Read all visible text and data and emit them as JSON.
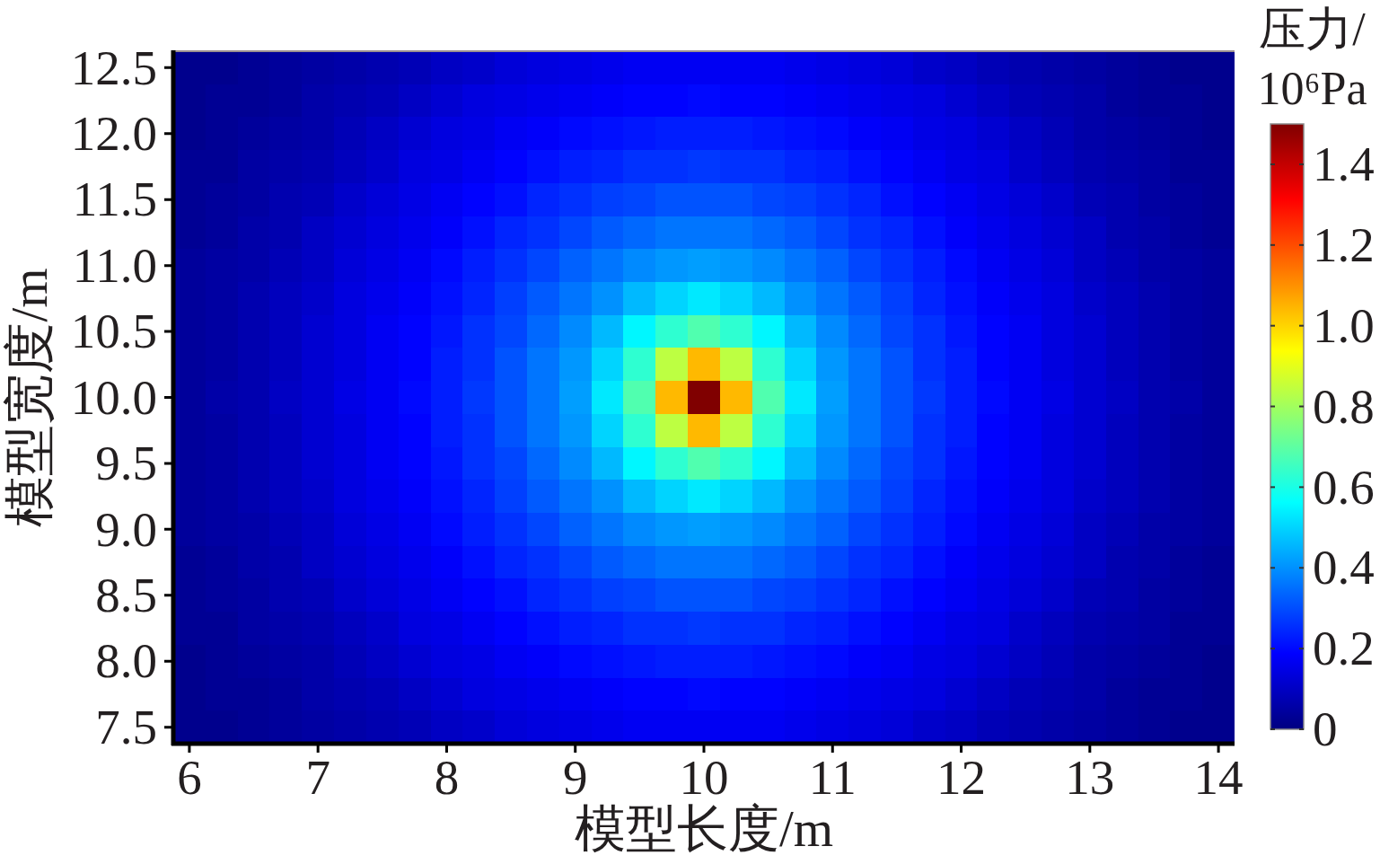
{
  "chart_data": {
    "type": "heatmap",
    "xlabel": "模型长度/m",
    "ylabel": "模型宽度/m",
    "clabel": "压力/10⁶Pa",
    "categories": [
      "6",
      null,
      null,
      null,
      "7",
      null,
      null,
      null,
      "8",
      null,
      null,
      null,
      "9",
      null,
      null,
      null,
      "10",
      null,
      null,
      null,
      "11",
      null,
      null,
      null,
      "12",
      null,
      null,
      null,
      "13",
      null,
      null,
      null,
      "14"
    ],
    "y_categories": [
      "12.5",
      null,
      "12.0",
      null,
      "11.5",
      null,
      "11.0",
      null,
      "10.5",
      null,
      "10.0",
      null,
      "9.5",
      null,
      "9.0",
      null,
      "8.5",
      null,
      "8.0",
      null,
      "7.5"
    ],
    "clim": [
      0,
      1.5
    ],
    "cticks": [
      0,
      0.2,
      0.4,
      0.6,
      0.8,
      {
        "value": 1,
        "label": "1.0"
      },
      1.2,
      1.4
    ],
    "cells": [
      [
        0.02,
        0.02,
        0.03,
        0.04,
        0.05,
        0.06,
        0.07,
        0.08,
        0.1,
        0.11,
        0.13,
        0.14,
        0.15,
        0.16,
        0.17,
        0.17,
        0.17,
        0.17,
        0.17,
        0.16,
        0.15,
        0.14,
        0.13,
        0.11,
        0.1,
        0.08,
        0.07,
        0.06,
        0.05,
        0.04,
        0.03,
        0.02,
        0.02
      ],
      [
        0.02,
        0.03,
        0.03,
        0.04,
        0.06,
        0.07,
        0.08,
        0.1,
        0.12,
        0.14,
        0.15,
        0.16,
        0.17,
        0.18,
        0.19,
        0.19,
        0.2,
        0.19,
        0.19,
        0.18,
        0.17,
        0.16,
        0.15,
        0.14,
        0.12,
        0.1,
        0.08,
        0.07,
        0.06,
        0.04,
        0.03,
        0.03,
        0.02
      ],
      [
        0.02,
        0.03,
        0.04,
        0.05,
        0.06,
        0.08,
        0.1,
        0.12,
        0.14,
        0.15,
        0.17,
        0.18,
        0.2,
        0.21,
        0.22,
        0.23,
        0.23,
        0.23,
        0.22,
        0.21,
        0.2,
        0.18,
        0.17,
        0.15,
        0.14,
        0.12,
        0.1,
        0.08,
        0.06,
        0.05,
        0.04,
        0.03,
        0.02
      ],
      [
        0.03,
        0.03,
        0.05,
        0.06,
        0.07,
        0.09,
        0.11,
        0.14,
        0.15,
        0.17,
        0.19,
        0.21,
        0.23,
        0.24,
        0.26,
        0.26,
        0.27,
        0.26,
        0.26,
        0.24,
        0.23,
        0.21,
        0.19,
        0.17,
        0.15,
        0.14,
        0.11,
        0.09,
        0.07,
        0.06,
        0.05,
        0.03,
        0.03
      ],
      [
        0.03,
        0.04,
        0.05,
        0.07,
        0.08,
        0.11,
        0.13,
        0.15,
        0.17,
        0.19,
        0.21,
        0.24,
        0.26,
        0.28,
        0.29,
        0.31,
        0.31,
        0.31,
        0.29,
        0.28,
        0.26,
        0.24,
        0.21,
        0.19,
        0.17,
        0.15,
        0.13,
        0.11,
        0.08,
        0.07,
        0.05,
        0.04,
        0.03
      ],
      [
        0.03,
        0.04,
        0.06,
        0.07,
        0.1,
        0.12,
        0.14,
        0.16,
        0.18,
        0.21,
        0.24,
        0.26,
        0.29,
        0.32,
        0.34,
        0.36,
        0.36,
        0.36,
        0.34,
        0.32,
        0.29,
        0.26,
        0.24,
        0.21,
        0.18,
        0.16,
        0.14,
        0.12,
        0.1,
        0.07,
        0.06,
        0.04,
        0.03
      ],
      [
        0.04,
        0.05,
        0.06,
        0.08,
        0.1,
        0.13,
        0.15,
        0.17,
        0.2,
        0.23,
        0.26,
        0.29,
        0.33,
        0.36,
        0.39,
        0.41,
        0.42,
        0.41,
        0.39,
        0.36,
        0.33,
        0.29,
        0.26,
        0.23,
        0.2,
        0.17,
        0.15,
        0.13,
        0.1,
        0.08,
        0.06,
        0.05,
        0.04
      ],
      [
        0.04,
        0.05,
        0.07,
        0.09,
        0.11,
        0.14,
        0.16,
        0.18,
        0.21,
        0.24,
        0.28,
        0.32,
        0.36,
        0.4,
        0.46,
        0.5,
        0.53,
        0.5,
        0.46,
        0.4,
        0.36,
        0.32,
        0.28,
        0.24,
        0.21,
        0.18,
        0.16,
        0.14,
        0.11,
        0.09,
        0.07,
        0.05,
        0.04
      ],
      [
        0.04,
        0.05,
        0.07,
        0.09,
        0.12,
        0.14,
        0.17,
        0.19,
        0.22,
        0.26,
        0.29,
        0.34,
        0.39,
        0.46,
        0.55,
        0.63,
        0.68,
        0.63,
        0.55,
        0.46,
        0.39,
        0.34,
        0.29,
        0.26,
        0.22,
        0.19,
        0.17,
        0.14,
        0.12,
        0.09,
        0.07,
        0.05,
        0.04
      ],
      [
        0.04,
        0.05,
        0.07,
        0.09,
        0.12,
        0.14,
        0.17,
        0.19,
        0.23,
        0.26,
        0.31,
        0.36,
        0.41,
        0.5,
        0.63,
        0.84,
        1.04,
        0.84,
        0.63,
        0.5,
        0.41,
        0.36,
        0.31,
        0.26,
        0.23,
        0.19,
        0.17,
        0.14,
        0.12,
        0.09,
        0.07,
        0.05,
        0.04
      ],
      [
        0.04,
        0.06,
        0.07,
        0.1,
        0.12,
        0.15,
        0.17,
        0.2,
        0.23,
        0.27,
        0.31,
        0.36,
        0.42,
        0.53,
        0.68,
        1.04,
        1.5,
        1.04,
        0.68,
        0.53,
        0.42,
        0.36,
        0.31,
        0.27,
        0.23,
        0.2,
        0.17,
        0.15,
        0.12,
        0.1,
        0.07,
        0.06,
        0.04
      ],
      [
        0.04,
        0.05,
        0.07,
        0.09,
        0.12,
        0.14,
        0.17,
        0.19,
        0.23,
        0.26,
        0.31,
        0.36,
        0.41,
        0.5,
        0.63,
        0.84,
        1.04,
        0.84,
        0.63,
        0.5,
        0.41,
        0.36,
        0.31,
        0.26,
        0.23,
        0.19,
        0.17,
        0.14,
        0.12,
        0.09,
        0.07,
        0.05,
        0.04
      ],
      [
        0.04,
        0.05,
        0.07,
        0.09,
        0.12,
        0.14,
        0.17,
        0.19,
        0.22,
        0.26,
        0.29,
        0.34,
        0.39,
        0.46,
        0.55,
        0.63,
        0.68,
        0.63,
        0.55,
        0.46,
        0.39,
        0.34,
        0.29,
        0.26,
        0.22,
        0.19,
        0.17,
        0.14,
        0.12,
        0.09,
        0.07,
        0.05,
        0.04
      ],
      [
        0.04,
        0.05,
        0.07,
        0.09,
        0.11,
        0.14,
        0.16,
        0.18,
        0.21,
        0.24,
        0.28,
        0.32,
        0.36,
        0.4,
        0.46,
        0.5,
        0.53,
        0.5,
        0.46,
        0.4,
        0.36,
        0.32,
        0.28,
        0.24,
        0.21,
        0.18,
        0.16,
        0.14,
        0.11,
        0.09,
        0.07,
        0.05,
        0.04
      ],
      [
        0.04,
        0.05,
        0.06,
        0.08,
        0.1,
        0.13,
        0.15,
        0.17,
        0.2,
        0.23,
        0.26,
        0.29,
        0.33,
        0.36,
        0.39,
        0.41,
        0.42,
        0.41,
        0.39,
        0.36,
        0.33,
        0.29,
        0.26,
        0.23,
        0.2,
        0.17,
        0.15,
        0.13,
        0.1,
        0.08,
        0.06,
        0.05,
        0.04
      ],
      [
        0.03,
        0.04,
        0.06,
        0.07,
        0.1,
        0.12,
        0.14,
        0.16,
        0.18,
        0.21,
        0.24,
        0.26,
        0.29,
        0.32,
        0.34,
        0.36,
        0.36,
        0.36,
        0.34,
        0.32,
        0.29,
        0.26,
        0.24,
        0.21,
        0.18,
        0.16,
        0.14,
        0.12,
        0.1,
        0.07,
        0.06,
        0.04,
        0.03
      ],
      [
        0.03,
        0.04,
        0.05,
        0.07,
        0.08,
        0.11,
        0.13,
        0.15,
        0.17,
        0.19,
        0.21,
        0.24,
        0.26,
        0.28,
        0.29,
        0.31,
        0.31,
        0.31,
        0.29,
        0.28,
        0.26,
        0.24,
        0.21,
        0.19,
        0.17,
        0.15,
        0.13,
        0.11,
        0.08,
        0.07,
        0.05,
        0.04,
        0.03
      ],
      [
        0.03,
        0.03,
        0.05,
        0.06,
        0.07,
        0.09,
        0.11,
        0.14,
        0.15,
        0.17,
        0.19,
        0.21,
        0.23,
        0.24,
        0.26,
        0.26,
        0.27,
        0.26,
        0.26,
        0.24,
        0.23,
        0.21,
        0.19,
        0.17,
        0.15,
        0.14,
        0.11,
        0.09,
        0.07,
        0.06,
        0.05,
        0.03,
        0.03
      ],
      [
        0.02,
        0.03,
        0.04,
        0.05,
        0.06,
        0.08,
        0.1,
        0.12,
        0.14,
        0.15,
        0.17,
        0.18,
        0.2,
        0.21,
        0.22,
        0.23,
        0.23,
        0.23,
        0.22,
        0.21,
        0.2,
        0.18,
        0.17,
        0.15,
        0.14,
        0.12,
        0.1,
        0.08,
        0.06,
        0.05,
        0.04,
        0.03,
        0.02
      ],
      [
        0.02,
        0.03,
        0.03,
        0.04,
        0.06,
        0.07,
        0.08,
        0.1,
        0.12,
        0.14,
        0.15,
        0.16,
        0.17,
        0.18,
        0.19,
        0.19,
        0.2,
        0.19,
        0.19,
        0.18,
        0.17,
        0.16,
        0.15,
        0.14,
        0.12,
        0.1,
        0.08,
        0.07,
        0.06,
        0.04,
        0.03,
        0.03,
        0.02
      ],
      [
        0.02,
        0.02,
        0.03,
        0.04,
        0.05,
        0.06,
        0.07,
        0.08,
        0.1,
        0.11,
        0.13,
        0.14,
        0.15,
        0.16,
        0.17,
        0.17,
        0.17,
        0.17,
        0.17,
        0.16,
        0.15,
        0.14,
        0.13,
        0.11,
        0.1,
        0.08,
        0.07,
        0.06,
        0.05,
        0.04,
        0.03,
        0.02,
        0.02
      ]
    ]
  }
}
